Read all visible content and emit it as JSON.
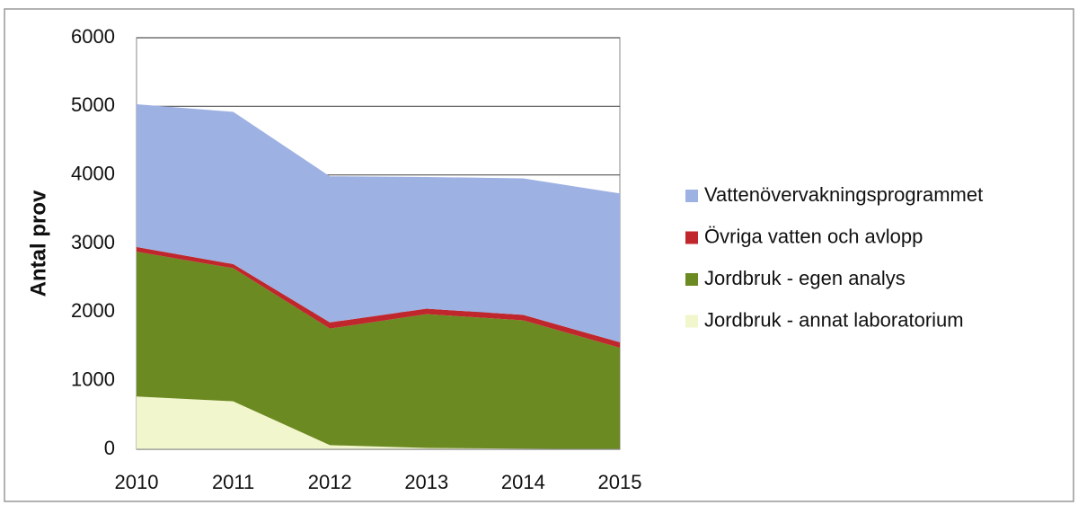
{
  "chart_data": {
    "type": "stacked_area",
    "y_label": "Antal prov",
    "categories": [
      "2010",
      "2011",
      "2012",
      "2013",
      "2014",
      "2015"
    ],
    "ylim": [
      0,
      6000
    ],
    "yticks": [
      0,
      1000,
      2000,
      3000,
      4000,
      5000,
      6000
    ],
    "grid": true,
    "legend": "right",
    "series": [
      {
        "name": "Vattenövervakningsprogrammet",
        "color": "#9db1e2",
        "values": [
          2080,
          2220,
          2130,
          1920,
          1990,
          2170
        ]
      },
      {
        "name": "Övriga vatten och avlopp",
        "color": "#c0272d",
        "values": [
          70,
          60,
          90,
          80,
          80,
          80
        ]
      },
      {
        "name": "Jordbruk - egen analys",
        "color": "#6b8a22",
        "values": [
          2110,
          1940,
          1700,
          1950,
          1870,
          1480
        ]
      },
      {
        "name": "Jordbruk - annat laboratorium",
        "color": "#f2f6cc",
        "values": [
          770,
          700,
          60,
          20,
          10,
          0
        ]
      }
    ]
  }
}
